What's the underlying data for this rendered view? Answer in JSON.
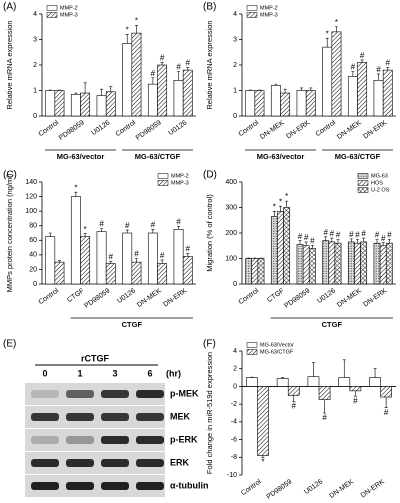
{
  "chart_data": [
    {
      "type": "bar",
      "label": "(A)",
      "ylabel": "Relative mRNA expression",
      "legend": "upper left",
      "categories": [
        "Control",
        "PD98059",
        "U0126",
        "Control",
        "PD98059",
        "U0126"
      ],
      "groups": [
        "MG-63/vector",
        "MG-63/CTGF"
      ],
      "ylim": [
        0,
        4
      ],
      "yticks": [
        0,
        1,
        2,
        3,
        4
      ],
      "series": [
        {
          "name": "MMP-2",
          "color": "#ffffff",
          "values": [
            1,
            0.85,
            0.8,
            2.85,
            1.25,
            1.4
          ],
          "errors": [
            0.02,
            0.05,
            0.25,
            0.35,
            0.25,
            0.35
          ],
          "annotations": [
            null,
            null,
            null,
            "*",
            "#",
            "#"
          ]
        },
        {
          "name": "MMP-3",
          "color": "#ffffff",
          "hatch": "diagonal",
          "values": [
            1,
            0.9,
            0.95,
            3.25,
            2.0,
            1.8
          ],
          "errors": [
            0.02,
            0.4,
            0.2,
            0.3,
            0.1,
            0.1
          ],
          "annotations": [
            null,
            null,
            null,
            "*",
            "#",
            "#"
          ]
        }
      ]
    },
    {
      "type": "bar",
      "label": "(B)",
      "ylabel": "Relative mRNA expression",
      "legend": "upper left",
      "categories": [
        "Control",
        "DN-MEK",
        "DN-ERK",
        "Control",
        "DN-MEK",
        "DN-ERK"
      ],
      "groups": [
        "MG-63/vector",
        "MG-63/CTGF"
      ],
      "ylim": [
        0,
        4
      ],
      "yticks": [
        0,
        1,
        2,
        3,
        4
      ],
      "series": [
        {
          "name": "MMP-2",
          "color": "#ffffff",
          "values": [
            1,
            1.2,
            1.0,
            2.7,
            1.55,
            1.4
          ],
          "errors": [
            0.02,
            0.05,
            0.1,
            0.35,
            0.2,
            0.25
          ],
          "annotations": [
            null,
            null,
            null,
            "*",
            "#",
            "#"
          ]
        },
        {
          "name": "MMP-3",
          "color": "#ffffff",
          "hatch": "diagonal",
          "values": [
            1,
            0.9,
            1.0,
            3.3,
            2.1,
            1.8
          ],
          "errors": [
            0.02,
            0.15,
            0.1,
            0.2,
            0.1,
            0.1
          ],
          "annotations": [
            null,
            null,
            null,
            "*",
            "#",
            "#"
          ]
        }
      ]
    },
    {
      "type": "bar",
      "label": "(C)",
      "ylabel": "MMPs protein concentration (ng/ml)",
      "legend": "upper right",
      "categories": [
        "Control",
        "CTGF",
        "PD98059",
        "U0126",
        "DN-MEK",
        "DN-ERK"
      ],
      "groups": [
        "CTGF"
      ],
      "ylim": [
        0,
        140
      ],
      "yticks": [
        0,
        20,
        40,
        60,
        80,
        100,
        120,
        140
      ],
      "series": [
        {
          "name": "MMP-2",
          "color": "#ffffff",
          "values": [
            65,
            120,
            72,
            70,
            70,
            75
          ],
          "errors": [
            5,
            6,
            4,
            4,
            5,
            4
          ],
          "annotations": [
            null,
            "*",
            "#",
            "#",
            "#",
            "#"
          ]
        },
        {
          "name": "MMP-3",
          "color": "#ffffff",
          "hatch": "diagonal",
          "values": [
            30,
            65,
            28,
            30,
            28,
            38
          ],
          "errors": [
            2,
            4,
            3,
            5,
            5,
            4
          ],
          "annotations": [
            null,
            "*",
            "#",
            "#",
            "#",
            "#"
          ]
        }
      ]
    },
    {
      "type": "bar",
      "label": "(D)",
      "ylabel": "Migration (% of control)",
      "legend": "upper right",
      "categories": [
        "Control",
        "CTGF",
        "PD98059",
        "U0126",
        "DN-MEK",
        "DN-ERK"
      ],
      "groups": [
        "CTGF"
      ],
      "ylim": [
        0,
        400
      ],
      "yticks": [
        0,
        100,
        200,
        300,
        400
      ],
      "series": [
        {
          "name": "MG-63",
          "color": "#ffffff",
          "hatch": "dots",
          "values": [
            100,
            265,
            155,
            170,
            165,
            160
          ],
          "errors": [
            2,
            20,
            15,
            15,
            12,
            15
          ],
          "annotations": [
            null,
            "*",
            "#",
            "#",
            "#",
            "#"
          ]
        },
        {
          "name": "HOS",
          "color": "#ffffff",
          "hatch": "diagonal",
          "values": [
            100,
            285,
            150,
            165,
            160,
            150
          ],
          "errors": [
            2,
            20,
            15,
            15,
            15,
            12
          ],
          "annotations": [
            null,
            "*",
            "#",
            "#",
            "#",
            "#"
          ]
        },
        {
          "name": "U-2 OS",
          "color": "#ffffff",
          "hatch": "cross",
          "values": [
            100,
            300,
            140,
            160,
            165,
            160
          ],
          "errors": [
            2,
            25,
            12,
            15,
            15,
            15
          ],
          "annotations": [
            null,
            "*",
            "#",
            "#",
            "#",
            "#"
          ]
        }
      ]
    },
    {
      "type": "bar",
      "label": "(F)",
      "ylabel": "Fold change in miR-519d expression",
      "legend": "upper left",
      "categories": [
        "Control",
        "PD98059",
        "U0126",
        "DN-MEK",
        "DN-ERK"
      ],
      "ylim": [
        -10,
        4
      ],
      "yticks": [
        -10,
        -8,
        -6,
        -4,
        -2,
        0,
        2,
        4
      ],
      "series": [
        {
          "name": "MG-63/Vector",
          "color": "#ffffff",
          "values": [
            1,
            0.9,
            1.1,
            1.0,
            1.0
          ],
          "errors": [
            0.05,
            0.1,
            1.6,
            2.0,
            1.0
          ],
          "annotations": [
            null,
            null,
            null,
            null,
            null
          ]
        },
        {
          "name": "MG-63/CTGF",
          "color": "#ffffff",
          "hatch": "diagonal",
          "values": [
            -7.8,
            -1.0,
            -1.5,
            -0.5,
            -1.2
          ],
          "errors": [
            0.2,
            0.7,
            1.5,
            0.6,
            1.2
          ],
          "annotations": [
            "*",
            "#",
            "#",
            "#",
            "#"
          ]
        }
      ]
    }
  ],
  "blot": {
    "label": "(E)",
    "treatment": "rCTGF",
    "lanes": [
      "0",
      "1",
      "3",
      "6"
    ],
    "unit": "(hr)",
    "rows": [
      "p-MEK",
      "MEK",
      "p-ERK",
      "ERK",
      "α-tubulin"
    ]
  }
}
